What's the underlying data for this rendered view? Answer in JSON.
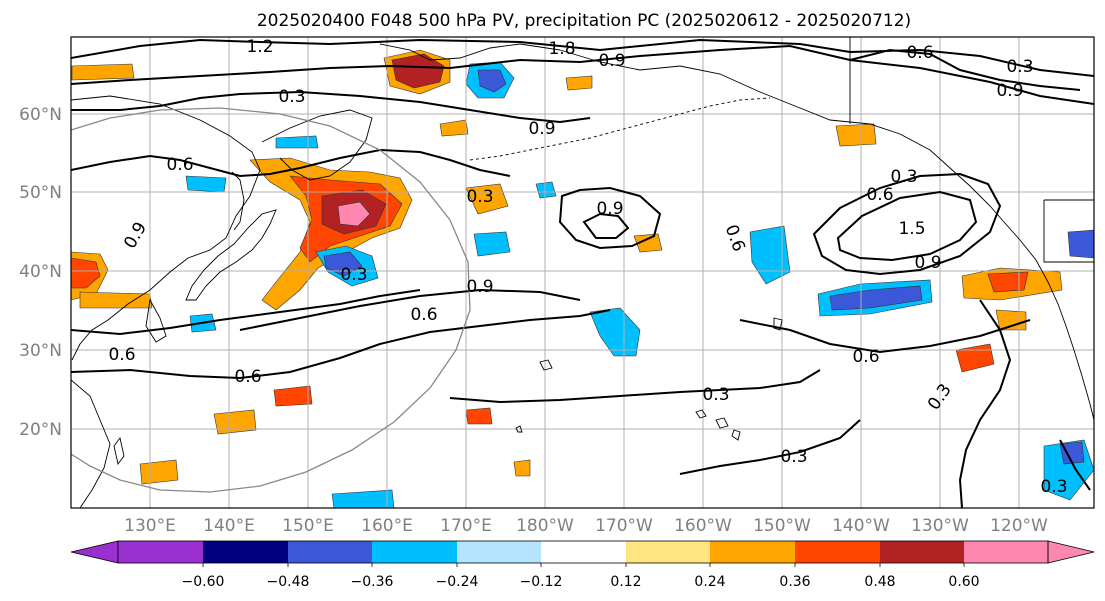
{
  "title": "2025020400 F048 500 hPa PV, precipitation PC (2025020612 - 2025020712)",
  "map": {
    "lon_labels": [
      "130°E",
      "140°E",
      "150°E",
      "160°E",
      "170°E",
      "180°W",
      "170°W",
      "160°W",
      "150°W",
      "140°W",
      "130°W",
      "120°W"
    ],
    "lat_labels": [
      "20°N",
      "30°N",
      "40°N",
      "50°N",
      "60°N"
    ],
    "contour_labels": [
      "1.2",
      "0.3",
      "0.6",
      "0.9",
      "1.8",
      "0.9",
      "0.9",
      "0.6",
      "0.3",
      "0.9",
      "0.3",
      "0.9",
      "0.6",
      "0.6",
      "0.3",
      "0.9",
      "0.6",
      "0.6",
      "0.3",
      "0.6",
      "1.5",
      "0.9",
      "0.6",
      "0.3",
      "0.3",
      "0.3",
      "0.3"
    ]
  },
  "colorbar": {
    "ticks": [
      "−0.60",
      "−0.48",
      "−0.36",
      "−0.24",
      "−0.12",
      "0.12",
      "0.24",
      "0.36",
      "0.48",
      "0.60"
    ],
    "colors": [
      "#9b30d0",
      "#000080",
      "#3a58d8",
      "#00bfff",
      "#b4e4ff",
      "#ffffff",
      "#ffe680",
      "#ffa500",
      "#ff4500",
      "#b22222",
      "#ff88b0",
      "#ff88b0"
    ]
  }
}
